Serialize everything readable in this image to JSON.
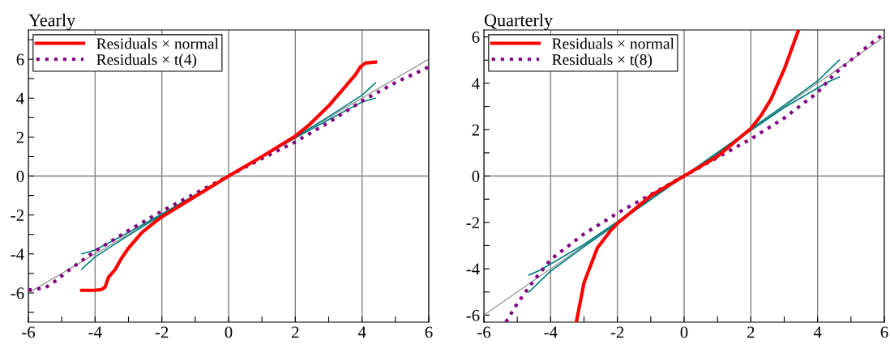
{
  "chart_data": [
    {
      "type": "line",
      "title": "Yearly",
      "xlim": [
        -6,
        6
      ],
      "ylim": [
        -7.5,
        7.5
      ],
      "xticks": [
        -6,
        {
          "value": -5,
          "label": null
        },
        -4,
        {
          "value": -3,
          "label": null
        },
        -2,
        {
          "value": -1,
          "label": null
        },
        0,
        {
          "value": 1,
          "label": null
        },
        2,
        {
          "value": 3,
          "label": null
        },
        4,
        {
          "value": 5,
          "label": null
        },
        6
      ],
      "yticks": [
        {
          "value": -7,
          "label": null
        },
        -6,
        {
          "value": -5,
          "label": null
        },
        -4,
        {
          "value": -3,
          "label": null
        },
        -2,
        {
          "value": -1,
          "label": null
        },
        0,
        {
          "value": 1,
          "label": null
        },
        2,
        {
          "value": 3,
          "label": null
        },
        4,
        {
          "value": 5,
          "label": null
        },
        6,
        {
          "value": 7,
          "label": null
        }
      ],
      "grid": "x",
      "legend": "top left",
      "ref_lines": [
        {
          "axis": "y",
          "value": 0,
          "color": "#808080"
        }
      ],
      "series": [
        {
          "color": "#808080",
          "x": [
            -6,
            6
          ],
          "values": [
            -6,
            6
          ]
        },
        {
          "color": "#008080",
          "x": [
            -4.4,
            -4,
            -3,
            -2,
            0,
            2,
            3,
            4,
            4.4
          ],
          "values": [
            -4.0,
            -3.8,
            -2.9,
            -1.95,
            0,
            2.0,
            3.05,
            4.15,
            4.78
          ]
        },
        {
          "color": "#008080",
          "x": [
            -4.4,
            -4,
            -3,
            -2,
            0,
            2,
            3,
            4,
            4.4
          ],
          "values": [
            -4.78,
            -4.15,
            -3.05,
            -2.0,
            0,
            1.95,
            2.9,
            3.8,
            4.0
          ]
        },
        {
          "name": "Residuals × t(4)",
          "color": "#800080",
          "line_style": "dotted",
          "x": [
            -6,
            -5.5,
            -5.2,
            -4.8,
            -4.4,
            -4,
            -3,
            -2,
            -1,
            0,
            1,
            2,
            3,
            4,
            5,
            6
          ],
          "values": [
            -5.85,
            -5.75,
            -5.4,
            -4.85,
            -4.35,
            -3.85,
            -2.8,
            -1.8,
            -0.9,
            0,
            0.9,
            1.75,
            2.75,
            3.85,
            4.8,
            5.6
          ]
        },
        {
          "name": "Residuals × normal",
          "color": "#ff0000",
          "line_style": "solid",
          "x": [
            -4.4,
            -4.0,
            -3.8,
            -3.7,
            -3.6,
            -3.4,
            -3.2,
            -3,
            -2.6,
            -2.2,
            -2,
            -1,
            0,
            1,
            2,
            2.4,
            3,
            3.5,
            3.8,
            3.95,
            4.1,
            4.4
          ],
          "values": [
            -5.87,
            -5.87,
            -5.82,
            -5.7,
            -5.2,
            -4.8,
            -4.2,
            -3.7,
            -2.9,
            -2.35,
            -2.1,
            -1.05,
            0,
            1.0,
            2.05,
            2.6,
            3.6,
            4.6,
            5.2,
            5.6,
            5.8,
            5.85
          ]
        }
      ]
    },
    {
      "type": "line",
      "title": "Quarterly",
      "xlim": [
        -6,
        6
      ],
      "ylim": [
        -6.3,
        6.3
      ],
      "xticks": [
        -6,
        {
          "value": -5,
          "label": null
        },
        -4,
        {
          "value": -3,
          "label": null
        },
        -2,
        {
          "value": -1,
          "label": null
        },
        0,
        {
          "value": 1,
          "label": null
        },
        2,
        {
          "value": 3,
          "label": null
        },
        4,
        {
          "value": 5,
          "label": null
        },
        6
      ],
      "yticks": [
        -6,
        {
          "value": -5,
          "label": null
        },
        -4,
        {
          "value": -3,
          "label": null
        },
        -2,
        {
          "value": -1,
          "label": null
        },
        0,
        {
          "value": 1,
          "label": null
        },
        2,
        {
          "value": 3,
          "label": null
        },
        4,
        {
          "value": 5,
          "label": null
        },
        6
      ],
      "grid": "x",
      "legend": "top left",
      "ref_lines": [
        {
          "axis": "y",
          "value": 0,
          "color": "#808080"
        }
      ],
      "series": [
        {
          "color": "#808080",
          "x": [
            -6,
            6
          ],
          "values": [
            -6,
            6
          ]
        },
        {
          "color": "#008080",
          "x": [
            -4.65,
            -4.3,
            -3,
            0,
            3,
            4,
            4.65
          ],
          "values": [
            -4.27,
            -4.05,
            -2.95,
            0,
            3.05,
            4.1,
            5.0
          ]
        },
        {
          "color": "#008080",
          "x": [
            -4.65,
            -4,
            -3,
            0,
            3,
            4.3,
            4.65
          ],
          "values": [
            -5.0,
            -4.1,
            -3.05,
            0,
            2.95,
            4.05,
            4.27
          ]
        },
        {
          "name": "Residuals × t(8)",
          "color": "#800080",
          "line_style": "dotted",
          "x": [
            -5.34,
            -5,
            -4.5,
            -4,
            -3,
            -2,
            -1,
            0,
            1,
            2,
            3,
            4,
            4.5,
            5,
            5.5,
            6
          ],
          "values": [
            -6.3,
            -5.5,
            -4.5,
            -3.6,
            -2.5,
            -1.6,
            -0.8,
            0,
            0.8,
            1.6,
            2.5,
            3.6,
            4.4,
            5.0,
            5.6,
            6.15
          ]
        },
        {
          "name": "Residuals × normal",
          "color": "#ff0000",
          "line_style": "solid",
          "x": [
            -3.23,
            -3.0,
            -2.6,
            -2.2,
            -2,
            -1,
            0,
            1,
            2,
            2.3,
            2.6,
            3.0,
            3.43
          ],
          "values": [
            -6.3,
            -4.6,
            -3.1,
            -2.35,
            -2.05,
            -0.85,
            0,
            0.85,
            2.05,
            2.6,
            3.3,
            4.6,
            6.3
          ]
        }
      ]
    }
  ]
}
